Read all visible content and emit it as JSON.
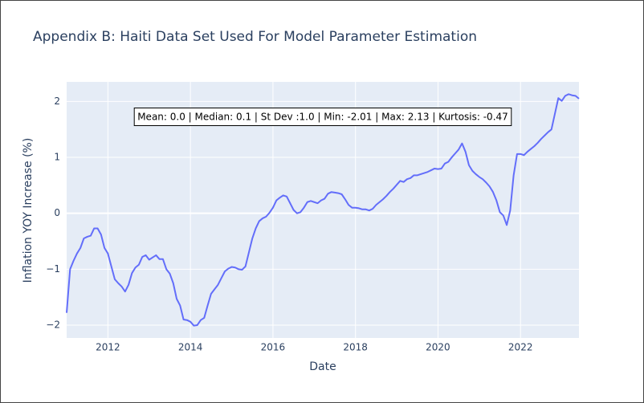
{
  "chart_data": {
    "type": "line",
    "title": "Appendix B: Haiti Data Set Used For Model Parameter Estimation",
    "annotation": "Mean: 0.0 | Median: 0.1 | St Dev :1.0 | Min: -2.01 | Max: 2.13 | Kurtosis: -0.47",
    "x_label": "Date",
    "y_label": "Inflation YOY Increase (%)",
    "x": [
      "2011-01",
      "2011-02",
      "2011-03",
      "2011-04",
      "2011-05",
      "2011-06",
      "2011-07",
      "2011-08",
      "2011-09",
      "2011-10",
      "2011-11",
      "2011-12",
      "2012-01",
      "2012-02",
      "2012-03",
      "2012-04",
      "2012-05",
      "2012-06",
      "2012-07",
      "2012-08",
      "2012-09",
      "2012-10",
      "2012-11",
      "2012-12",
      "2013-01",
      "2013-02",
      "2013-03",
      "2013-04",
      "2013-05",
      "2013-06",
      "2013-07",
      "2013-08",
      "2013-09",
      "2013-10",
      "2013-11",
      "2013-12",
      "2014-01",
      "2014-02",
      "2014-03",
      "2014-04",
      "2014-05",
      "2014-06",
      "2014-07",
      "2014-08",
      "2014-09",
      "2014-10",
      "2014-11",
      "2014-12",
      "2015-01",
      "2015-02",
      "2015-03",
      "2015-04",
      "2015-05",
      "2015-06",
      "2015-07",
      "2015-08",
      "2015-09",
      "2015-10",
      "2015-11",
      "2015-12",
      "2016-01",
      "2016-02",
      "2016-03",
      "2016-04",
      "2016-05",
      "2016-06",
      "2016-07",
      "2016-08",
      "2016-09",
      "2016-10",
      "2016-11",
      "2016-12",
      "2017-01",
      "2017-02",
      "2017-03",
      "2017-04",
      "2017-05",
      "2017-06",
      "2017-07",
      "2017-08",
      "2017-09",
      "2017-10",
      "2017-11",
      "2017-12",
      "2018-01",
      "2018-02",
      "2018-03",
      "2018-04",
      "2018-05",
      "2018-06",
      "2018-07",
      "2018-08",
      "2018-09",
      "2018-10",
      "2018-11",
      "2018-12",
      "2019-01",
      "2019-02",
      "2019-03",
      "2019-04",
      "2019-05",
      "2019-06",
      "2019-07",
      "2019-08",
      "2019-09",
      "2019-10",
      "2019-11",
      "2019-12",
      "2020-01",
      "2020-02",
      "2020-03",
      "2020-04",
      "2020-05",
      "2020-06",
      "2020-07",
      "2020-08",
      "2020-09",
      "2020-10",
      "2020-11",
      "2020-12",
      "2021-01",
      "2021-02",
      "2021-03",
      "2021-04",
      "2021-05",
      "2021-06",
      "2021-07",
      "2021-08",
      "2021-09",
      "2021-10",
      "2021-11",
      "2021-12",
      "2022-01",
      "2022-02",
      "2022-03",
      "2022-04",
      "2022-05",
      "2022-06",
      "2022-07",
      "2022-08",
      "2022-09",
      "2022-10",
      "2022-11",
      "2022-12",
      "2023-01",
      "2023-02",
      "2023-03",
      "2023-04",
      "2023-05",
      "2023-06"
    ],
    "series": [
      {
        "name": "Inflation",
        "color": "#636efa",
        "values": [
          -1.78,
          -1.0,
          -0.85,
          -0.72,
          -0.62,
          -0.45,
          -0.42,
          -0.4,
          -0.27,
          -0.27,
          -0.38,
          -0.62,
          -0.72,
          -0.95,
          -1.18,
          -1.25,
          -1.31,
          -1.4,
          -1.28,
          -1.07,
          -0.97,
          -0.92,
          -0.78,
          -0.75,
          -0.83,
          -0.79,
          -0.75,
          -0.82,
          -0.82,
          -1.0,
          -1.08,
          -1.25,
          -1.53,
          -1.65,
          -1.9,
          -1.91,
          -1.94,
          -2.01,
          -2.0,
          -1.91,
          -1.87,
          -1.65,
          -1.44,
          -1.36,
          -1.28,
          -1.16,
          -1.04,
          -0.99,
          -0.96,
          -0.97,
          -1.0,
          -1.01,
          -0.95,
          -0.7,
          -0.45,
          -0.27,
          -0.14,
          -0.09,
          -0.06,
          0.01,
          0.1,
          0.23,
          0.28,
          0.32,
          0.3,
          0.18,
          0.06,
          0.0,
          0.02,
          0.1,
          0.2,
          0.22,
          0.2,
          0.18,
          0.23,
          0.26,
          0.35,
          0.38,
          0.37,
          0.36,
          0.34,
          0.25,
          0.15,
          0.1,
          0.1,
          0.09,
          0.07,
          0.07,
          0.05,
          0.08,
          0.15,
          0.2,
          0.25,
          0.31,
          0.38,
          0.44,
          0.51,
          0.58,
          0.56,
          0.61,
          0.63,
          0.68,
          0.68,
          0.7,
          0.72,
          0.74,
          0.77,
          0.8,
          0.79,
          0.8,
          0.89,
          0.92,
          1.0,
          1.07,
          1.14,
          1.25,
          1.1,
          0.86,
          0.76,
          0.7,
          0.65,
          0.61,
          0.55,
          0.48,
          0.38,
          0.23,
          0.02,
          -0.04,
          -0.21,
          0.05,
          0.68,
          1.06,
          1.06,
          1.04,
          1.1,
          1.15,
          1.2,
          1.26,
          1.33,
          1.39,
          1.45,
          1.5,
          1.78,
          2.06,
          2.01,
          2.1,
          2.13,
          2.11,
          2.1,
          2.05
        ]
      }
    ],
    "xlim": [
      "2011-01",
      "2023-06"
    ],
    "xticks": [
      {
        "value": "2012-01",
        "label": "2012"
      },
      {
        "value": "2014-01",
        "label": "2014"
      },
      {
        "value": "2016-01",
        "label": "2016"
      },
      {
        "value": "2018-01",
        "label": "2018"
      },
      {
        "value": "2020-01",
        "label": "2020"
      },
      {
        "value": "2022-01",
        "label": "2022"
      }
    ],
    "ylim": [
      -2.23,
      2.35
    ],
    "yticks": [
      {
        "value": -2,
        "label": "−2"
      },
      {
        "value": -1,
        "label": "−1"
      },
      0,
      1,
      2
    ],
    "grid": true,
    "background": "#e5ecf6"
  }
}
